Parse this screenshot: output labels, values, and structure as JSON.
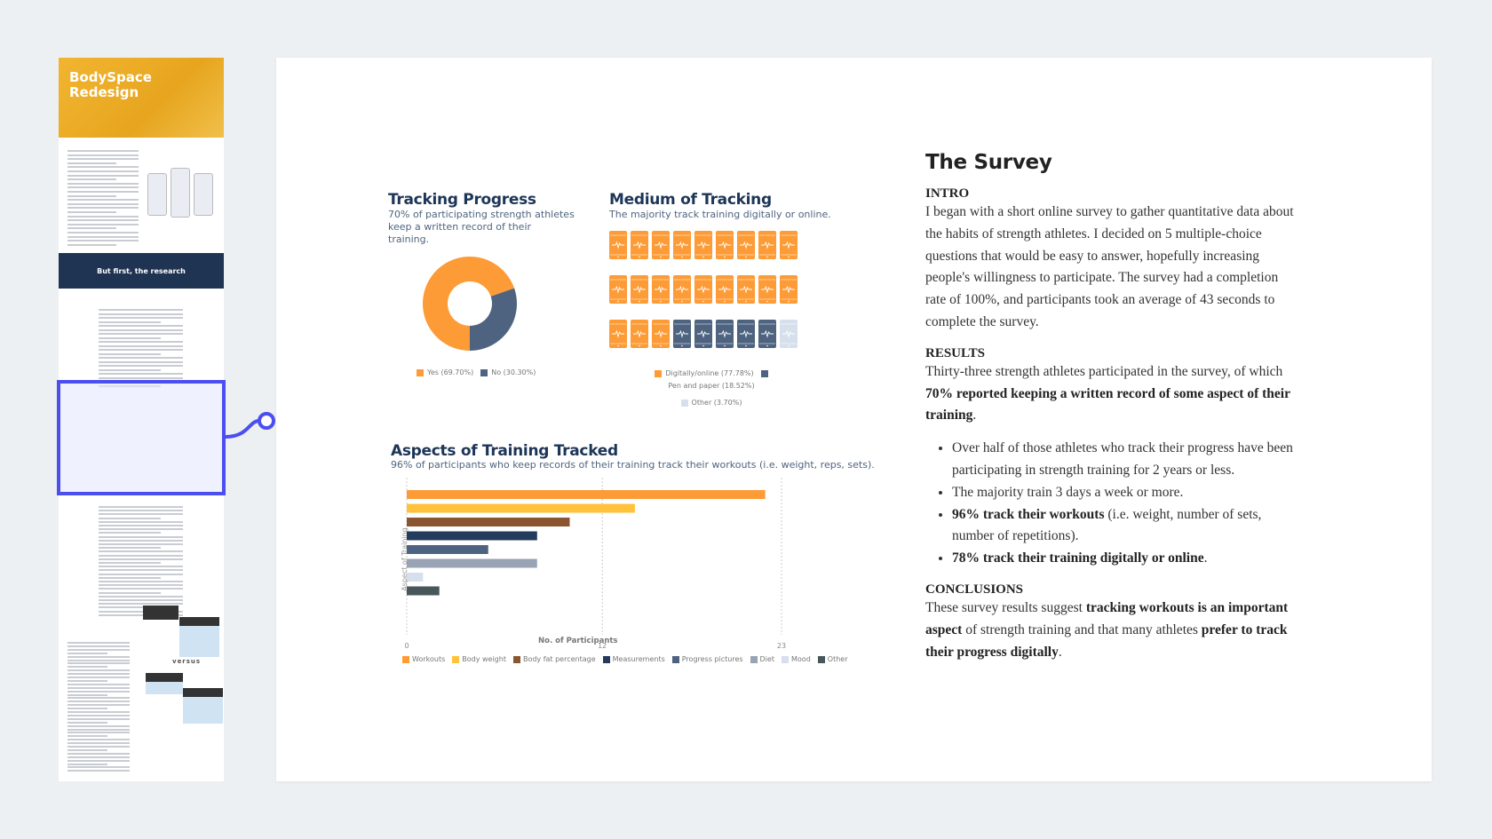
{
  "thumbnails": {
    "banner_title": "BodySpace Redesign",
    "band_title": "But first, the research",
    "versus": "versus"
  },
  "colors": {
    "selection": "#4b4ef0",
    "orange": "#fd9b37",
    "slate": "#4e6380",
    "light": "#d6e0ec"
  },
  "charts": {
    "tracking": {
      "title": "Tracking Progress",
      "subtitle": "70% of participating strength athletes keep a written record of their training.",
      "legend": [
        "Yes (69.70%)",
        "No (30.30%)"
      ]
    },
    "medium": {
      "title": "Medium of Tracking",
      "subtitle": "The majority track training digitally or online.",
      "legend": [
        "Digitally/online (77.78%)",
        "Pen and paper (18.52%)",
        "Other (3.70%)"
      ]
    },
    "aspects": {
      "title": "Aspects of Training Tracked",
      "subtitle": "96% of participants who keep records of their training track their workouts (i.e. weight, reps, sets).",
      "xlabel": "No. of Participants",
      "ylabel": "Aspect of Training",
      "ticks": [
        "0",
        "12",
        "23"
      ]
    }
  },
  "chart_data": [
    {
      "type": "pie",
      "title": "Tracking Progress",
      "categories": [
        "Yes",
        "No"
      ],
      "values": [
        69.7,
        30.3
      ],
      "colors": [
        "#fd9b37",
        "#4e6380"
      ],
      "donut": true
    },
    {
      "type": "pictogram",
      "title": "Medium of Tracking",
      "categories": [
        "Digitally/online",
        "Pen and paper",
        "Other"
      ],
      "values": [
        77.78,
        18.52,
        3.7
      ],
      "counts": [
        21,
        5,
        1
      ],
      "colors": [
        "#fd9b37",
        "#4e6380",
        "#d6e0ec"
      ],
      "icon": "phone-heartbeat-icon"
    },
    {
      "type": "bar",
      "orientation": "horizontal",
      "title": "Aspects of Training Tracked",
      "categories": [
        "Workouts",
        "Body weight",
        "Body fat percentage",
        "Measurements",
        "Progress pictures",
        "Diet",
        "Mood",
        "Other"
      ],
      "values": [
        22,
        14,
        10,
        8,
        5,
        8,
        1,
        2
      ],
      "colors": [
        "#fd9b37",
        "#ffc23a",
        "#8a5530",
        "#233b5c",
        "#4e6380",
        "#98a4b3",
        "#d6e0ec",
        "#47575a"
      ],
      "xlim": [
        0,
        23
      ],
      "xticks": [
        0,
        12,
        23
      ],
      "xlabel": "No. of Participants",
      "ylabel": "Aspect of Training",
      "grid": true,
      "legend": "bottom"
    }
  ],
  "survey": {
    "title": "The Survey",
    "intro_h": "INTRO",
    "intro": "I began with a short online survey to gather quantitative data about the habits of strength athletes. I decided on 5 multiple-choice questions that would be easy to answer, hopefully increasing people's willingness to participate. The survey had a completion rate of 100%, and participants took an average of 43 seconds to complete the survey.",
    "results_h": "RESULTS",
    "results_a": "Thirty-three strength athletes participated in the survey, of which ",
    "results_b": "70% reported keeping a written record of some aspect of their training",
    "results_c": ".",
    "b1": "Over half of those athletes who track their progress have been participating in strength training for 2 years or less.",
    "b2": "The majority train 3 days a week or more.",
    "b3a": "96% track their workouts",
    "b3b": " (i.e. weight, number of sets, number of repetitions).",
    "b4a": "78% track their training digitally or online",
    "b4b": ".",
    "concl_h": "CONCLUSIONS",
    "c1": "These survey results suggest ",
    "c2": "tracking workouts is an important aspect",
    "c3": " of strength training and that many athletes ",
    "c4": "prefer to track their progress digitally",
    "c5": "."
  }
}
